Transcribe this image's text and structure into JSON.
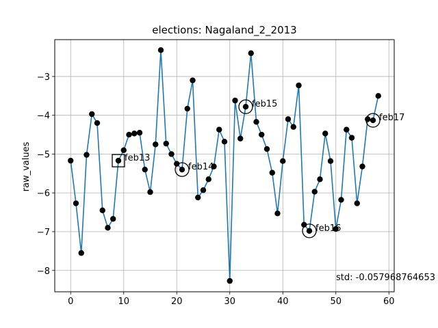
{
  "chart_data": {
    "type": "line",
    "title": "elections: Nagaland_2_2013",
    "xlabel": "",
    "ylabel": "raw_values",
    "xlim": [
      -3,
      61
    ],
    "ylim": [
      -8.55,
      -2.05
    ],
    "xticks": [
      0,
      10,
      20,
      30,
      40,
      50,
      60
    ],
    "yticks": [
      -8,
      -7,
      -6,
      -5,
      -4,
      -3
    ],
    "ytick_labels": [
      "−8",
      "−7",
      "−6",
      "−5",
      "−4",
      "−3"
    ],
    "grid": true,
    "line_color": "#1f77b4",
    "marker_color": "#000000",
    "series": [
      {
        "x": [
          0,
          1,
          2,
          3,
          4,
          5,
          6,
          7,
          8,
          9,
          10,
          11,
          12,
          13,
          14,
          15,
          16,
          17,
          18,
          19,
          20,
          21,
          22,
          23,
          24,
          25,
          26,
          27,
          28,
          29,
          30,
          31,
          32,
          33,
          34,
          35,
          36,
          37,
          38,
          39,
          40,
          41,
          42,
          43,
          44,
          45,
          46,
          47,
          48,
          49,
          50,
          51,
          52,
          53,
          54,
          55,
          56,
          57,
          58
        ],
        "y": [
          -5.17,
          -6.27,
          -7.55,
          -5.02,
          -3.97,
          -4.2,
          -6.45,
          -6.9,
          -6.67,
          -5.17,
          -4.9,
          -4.5,
          -4.47,
          -4.45,
          -5.4,
          -5.98,
          -4.75,
          -2.32,
          -4.73,
          -5.0,
          -5.25,
          -5.4,
          -3.83,
          -3.1,
          -6.12,
          -5.93,
          -5.65,
          -5.32,
          -4.37,
          -4.68,
          -8.27,
          -3.62,
          -4.6,
          -3.78,
          -2.4,
          -4.17,
          -4.5,
          -4.87,
          -5.48,
          -6.53,
          -5.18,
          -4.1,
          -4.3,
          -3.23,
          -6.82,
          -6.98,
          -5.97,
          -5.65,
          -4.47,
          -5.18,
          -6.93,
          -6.18,
          -4.37,
          -4.58,
          -6.27,
          -5.32,
          -4.1,
          -4.13,
          -3.5
        ]
      }
    ],
    "annotations": [
      {
        "label": "feb13",
        "x": 9,
        "y": -5.17,
        "marker": "square"
      },
      {
        "label": "feb14",
        "x": 21,
        "y": -5.4,
        "marker": "circle"
      },
      {
        "label": "feb15",
        "x": 33,
        "y": -3.78,
        "marker": "circle"
      },
      {
        "label": "feb16",
        "x": 45,
        "y": -6.98,
        "marker": "circle"
      },
      {
        "label": "feb17",
        "x": 57,
        "y": -4.13,
        "marker": "circle"
      }
    ],
    "std_text": "std: -0.057968764653"
  }
}
